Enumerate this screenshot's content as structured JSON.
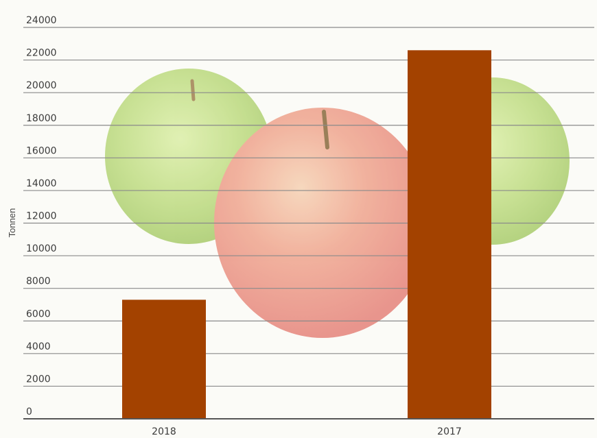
{
  "chart_data": {
    "type": "bar",
    "categories": [
      "2018",
      "2017"
    ],
    "values": [
      7300,
      22600
    ],
    "ylabel": "Tonnen",
    "xlabel": "",
    "ylim": [
      0,
      24000
    ],
    "yticks": [
      0,
      2000,
      4000,
      6000,
      8000,
      10000,
      12000,
      14000,
      16000,
      18000,
      20000,
      22000,
      24000
    ],
    "grid": true,
    "bar_color": "#a34200",
    "background": "apples-photo"
  }
}
